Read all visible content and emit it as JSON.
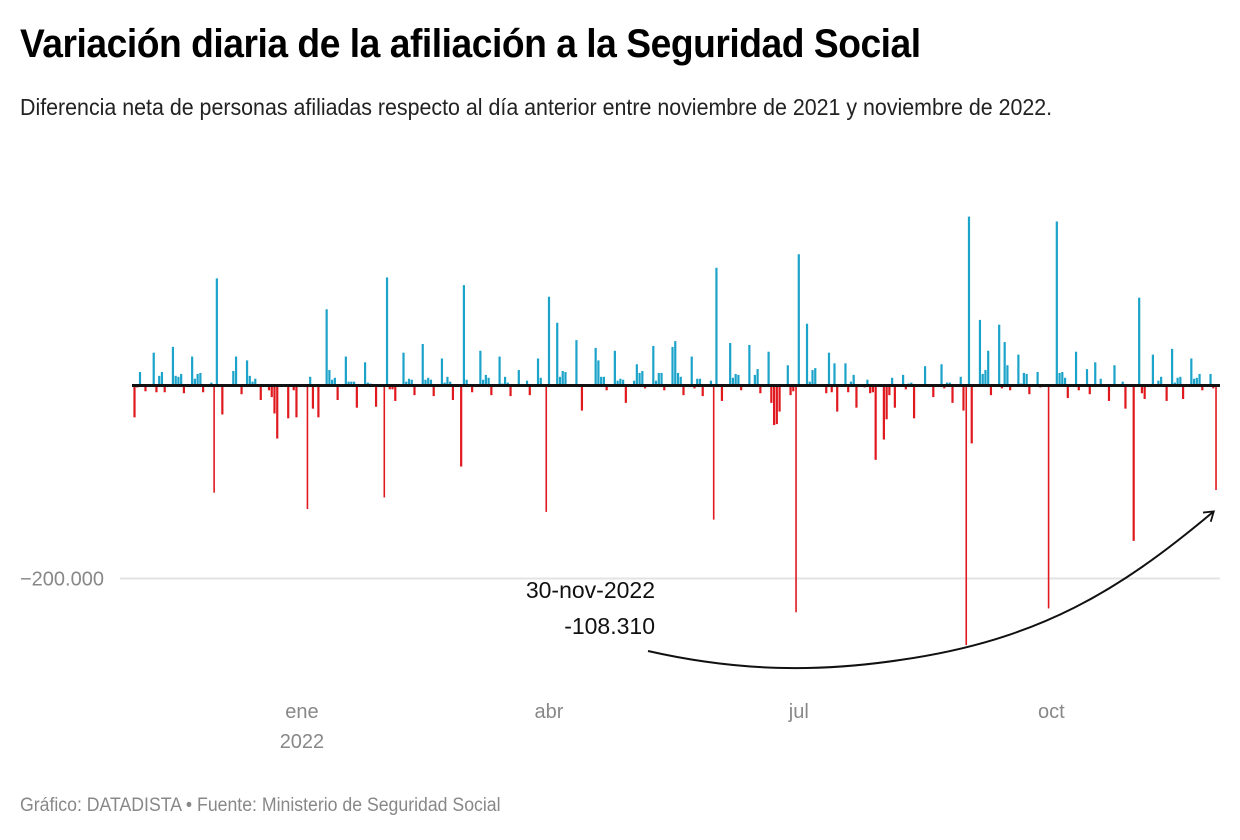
{
  "chart_data": {
    "type": "bar",
    "title": "Variación diaria de la afiliación a la Seguridad Social",
    "subtitle": "Diferencia neta de personas afiliadas respecto al día anterior entre noviembre de 2021 y noviembre de 2022.",
    "xlabel": "",
    "ylabel": "",
    "x_start_date": "2021-11-01",
    "x_end_date": "2022-11-30",
    "x_ticks": [
      {
        "label": "ene",
        "sublabel": "2022",
        "day_offset": 61
      },
      {
        "label": "abr",
        "sublabel": "",
        "day_offset": 151
      },
      {
        "label": "jul",
        "sublabel": "",
        "day_offset": 242
      },
      {
        "label": "oct",
        "sublabel": "",
        "day_offset": 334
      }
    ],
    "y_gridlines": [
      {
        "value": -200000,
        "label": "−200.000"
      }
    ],
    "ylim": [
      -300000,
      200000
    ],
    "grid": true,
    "legend": "none",
    "colors": {
      "positive": "#1ba3c9",
      "negative": "#e0191e",
      "baseline": "#111111",
      "grid": "#e3e3e3"
    },
    "annotation": {
      "date_label": "30-nov-2022",
      "value_label": "-108.310",
      "target_day_offset": 394,
      "target_value": -108310
    },
    "series": [
      {
        "name": "Variación diaria",
        "points_format": "[day_offset_from_x_start_date, net_change_persons]",
        "points": [
          [
            0,
            -33000
          ],
          [
            1,
            -2000
          ],
          [
            2,
            14000
          ],
          [
            4,
            -6000
          ],
          [
            7,
            34000
          ],
          [
            8,
            -7000
          ],
          [
            9,
            10000
          ],
          [
            10,
            14000
          ],
          [
            11,
            -7000
          ],
          [
            14,
            40000
          ],
          [
            15,
            10000
          ],
          [
            16,
            9000
          ],
          [
            17,
            12000
          ],
          [
            18,
            -8000
          ],
          [
            21,
            30000
          ],
          [
            22,
            7000
          ],
          [
            23,
            12000
          ],
          [
            24,
            13000
          ],
          [
            25,
            -7000
          ],
          [
            28,
            3000
          ],
          [
            29,
            -111000
          ],
          [
            30,
            111000
          ],
          [
            32,
            -30000
          ],
          [
            36,
            15000
          ],
          [
            37,
            30000
          ],
          [
            39,
            -9000
          ],
          [
            41,
            26000
          ],
          [
            42,
            10000
          ],
          [
            43,
            4000
          ],
          [
            44,
            7000
          ],
          [
            46,
            -15000
          ],
          [
            49,
            -5000
          ],
          [
            50,
            -12000
          ],
          [
            51,
            -29000
          ],
          [
            52,
            -55000
          ],
          [
            56,
            -34000
          ],
          [
            58,
            -5000
          ],
          [
            59,
            -33000
          ],
          [
            63,
            -128000
          ],
          [
            64,
            9000
          ],
          [
            65,
            -24000
          ],
          [
            67,
            -33000
          ],
          [
            70,
            79000
          ],
          [
            71,
            16000
          ],
          [
            72,
            6000
          ],
          [
            73,
            8000
          ],
          [
            74,
            -15000
          ],
          [
            77,
            30000
          ],
          [
            78,
            4000
          ],
          [
            79,
            4000
          ],
          [
            80,
            4000
          ],
          [
            81,
            -23000
          ],
          [
            84,
            24000
          ],
          [
            85,
            3000
          ],
          [
            86,
            2000
          ],
          [
            88,
            -22000
          ],
          [
            91,
            -116000
          ],
          [
            92,
            112000
          ],
          [
            93,
            -4000
          ],
          [
            94,
            -4000
          ],
          [
            95,
            -16000
          ],
          [
            98,
            34000
          ],
          [
            99,
            4000
          ],
          [
            100,
            7000
          ],
          [
            101,
            6000
          ],
          [
            102,
            -10000
          ],
          [
            105,
            43000
          ],
          [
            106,
            6000
          ],
          [
            107,
            8000
          ],
          [
            108,
            6000
          ],
          [
            109,
            -11000
          ],
          [
            112,
            28000
          ],
          [
            113,
            3000
          ],
          [
            114,
            9000
          ],
          [
            115,
            4000
          ],
          [
            116,
            -15000
          ],
          [
            119,
            -84000
          ],
          [
            120,
            104000
          ],
          [
            121,
            6000
          ],
          [
            123,
            -7000
          ],
          [
            126,
            36000
          ],
          [
            127,
            6000
          ],
          [
            128,
            11000
          ],
          [
            129,
            8000
          ],
          [
            130,
            -10000
          ],
          [
            133,
            30000
          ],
          [
            134,
            2000
          ],
          [
            135,
            9000
          ],
          [
            136,
            3000
          ],
          [
            137,
            -11000
          ],
          [
            140,
            16000
          ],
          [
            143,
            5000
          ],
          [
            144,
            -10000
          ],
          [
            147,
            28000
          ],
          [
            148,
            8000
          ],
          [
            150,
            -131000
          ],
          [
            151,
            92000
          ],
          [
            154,
            65000
          ],
          [
            155,
            9000
          ],
          [
            156,
            15000
          ],
          [
            157,
            14000
          ],
          [
            161,
            47000
          ],
          [
            163,
            -26000
          ],
          [
            168,
            39000
          ],
          [
            169,
            26000
          ],
          [
            170,
            9000
          ],
          [
            171,
            9000
          ],
          [
            172,
            -5000
          ],
          [
            175,
            36000
          ],
          [
            176,
            5000
          ],
          [
            177,
            7000
          ],
          [
            178,
            6000
          ],
          [
            179,
            -18000
          ],
          [
            182,
            5000
          ],
          [
            183,
            22000
          ],
          [
            184,
            13000
          ],
          [
            185,
            15000
          ],
          [
            186,
            -3000
          ],
          [
            189,
            41000
          ],
          [
            190,
            5000
          ],
          [
            191,
            13000
          ],
          [
            192,
            13000
          ],
          [
            193,
            -5000
          ],
          [
            196,
            40000
          ],
          [
            197,
            46000
          ],
          [
            198,
            13000
          ],
          [
            199,
            9000
          ],
          [
            200,
            -10000
          ],
          [
            203,
            30000
          ],
          [
            204,
            -3000
          ],
          [
            205,
            7000
          ],
          [
            206,
            7000
          ],
          [
            207,
            -11000
          ],
          [
            210,
            5000
          ],
          [
            211,
            -139000
          ],
          [
            212,
            122000
          ],
          [
            214,
            -16000
          ],
          [
            217,
            44000
          ],
          [
            218,
            8000
          ],
          [
            219,
            12000
          ],
          [
            220,
            11000
          ],
          [
            221,
            -5000
          ],
          [
            224,
            42000
          ],
          [
            226,
            11000
          ],
          [
            227,
            17000
          ],
          [
            228,
            -8000
          ],
          [
            231,
            35000
          ],
          [
            232,
            -18000
          ],
          [
            233,
            -41000
          ],
          [
            234,
            -40000
          ],
          [
            235,
            -27000
          ],
          [
            238,
            21000
          ],
          [
            239,
            -10000
          ],
          [
            240,
            -6000
          ],
          [
            241,
            -235000
          ],
          [
            242,
            136000
          ],
          [
            245,
            64000
          ],
          [
            246,
            4000
          ],
          [
            247,
            16000
          ],
          [
            248,
            18000
          ],
          [
            252,
            -8000
          ],
          [
            253,
            34000
          ],
          [
            254,
            -7000
          ],
          [
            255,
            23000
          ],
          [
            256,
            -27000
          ],
          [
            259,
            23000
          ],
          [
            260,
            -7000
          ],
          [
            261,
            4000
          ],
          [
            262,
            11000
          ],
          [
            263,
            -23000
          ],
          [
            266,
            -2000
          ],
          [
            267,
            6000
          ],
          [
            268,
            -8000
          ],
          [
            269,
            -7000
          ],
          [
            270,
            -77000
          ],
          [
            273,
            -56000
          ],
          [
            274,
            -35000
          ],
          [
            275,
            -10000
          ],
          [
            276,
            8000
          ],
          [
            277,
            -23000
          ],
          [
            280,
            11000
          ],
          [
            281,
            -4000
          ],
          [
            282,
            2000
          ],
          [
            283,
            3000
          ],
          [
            284,
            -34000
          ],
          [
            288,
            20000
          ],
          [
            291,
            -12000
          ],
          [
            294,
            22000
          ],
          [
            295,
            -3000
          ],
          [
            296,
            3000
          ],
          [
            297,
            3000
          ],
          [
            298,
            -18000
          ],
          [
            301,
            9000
          ],
          [
            302,
            -26000
          ],
          [
            303,
            -269000
          ],
          [
            304,
            175000
          ],
          [
            305,
            -60000
          ],
          [
            308,
            68000
          ],
          [
            309,
            12000
          ],
          [
            310,
            16000
          ],
          [
            311,
            36000
          ],
          [
            312,
            -10000
          ],
          [
            315,
            63000
          ],
          [
            316,
            -3000
          ],
          [
            317,
            45000
          ],
          [
            318,
            21000
          ],
          [
            319,
            -5000
          ],
          [
            322,
            32000
          ],
          [
            323,
            2000
          ],
          [
            324,
            13000
          ],
          [
            325,
            12000
          ],
          [
            326,
            -9000
          ],
          [
            329,
            14000
          ],
          [
            330,
            -2000
          ],
          [
            333,
            -231000
          ],
          [
            336,
            170000
          ],
          [
            337,
            13000
          ],
          [
            338,
            14000
          ],
          [
            339,
            8000
          ],
          [
            340,
            -13000
          ],
          [
            343,
            35000
          ],
          [
            344,
            -5000
          ],
          [
            347,
            17000
          ],
          [
            348,
            -9000
          ],
          [
            350,
            24000
          ],
          [
            352,
            7000
          ],
          [
            355,
            -16000
          ],
          [
            357,
            21000
          ],
          [
            360,
            4000
          ],
          [
            361,
            -24000
          ],
          [
            364,
            -161000
          ],
          [
            366,
            91000
          ],
          [
            367,
            -8000
          ],
          [
            368,
            -14000
          ],
          [
            371,
            32000
          ],
          [
            373,
            5000
          ],
          [
            374,
            9000
          ],
          [
            376,
            -16000
          ],
          [
            378,
            38000
          ],
          [
            379,
            3000
          ],
          [
            380,
            8000
          ],
          [
            381,
            9000
          ],
          [
            382,
            -14000
          ],
          [
            385,
            28000
          ],
          [
            386,
            7000
          ],
          [
            387,
            8000
          ],
          [
            388,
            12000
          ],
          [
            389,
            -5000
          ],
          [
            392,
            12000
          ],
          [
            393,
            -3000
          ],
          [
            394,
            -108310
          ]
        ]
      }
    ],
    "footer": "Gráfico: DATADISTA • Fuente: Ministerio de Seguridad Social"
  }
}
